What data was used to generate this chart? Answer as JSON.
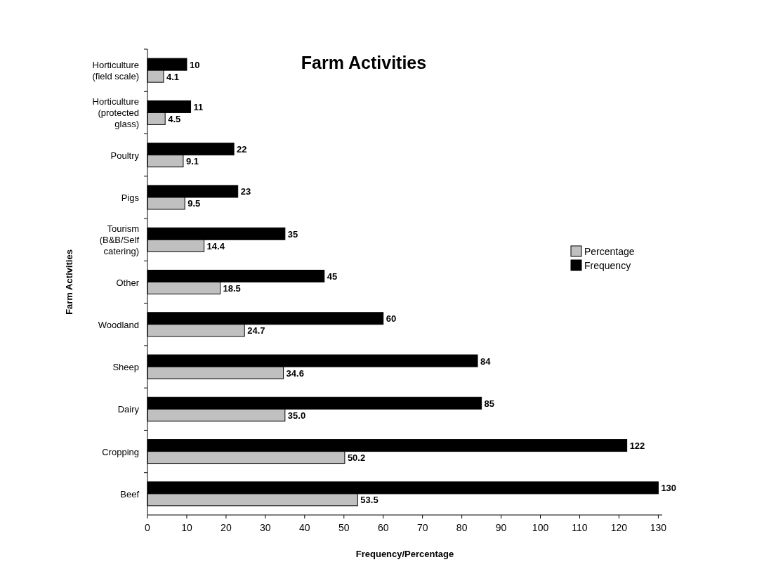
{
  "chart_data": {
    "type": "bar",
    "orientation": "horizontal",
    "title": "Farm Activities",
    "xlabel": "Frequency/Percentage",
    "ylabel": "Farm Activities",
    "categories": [
      "Horticulture (field scale)",
      "Horticulture (protected glass)",
      "Poultry",
      "Pigs",
      "Tourism (B&B/Self catering)",
      "Other",
      "Woodland",
      "Sheep",
      "Dairy",
      "Cropping",
      "Beef"
    ],
    "series": [
      {
        "name": "Percentage",
        "color": "#c0c0c0",
        "values": [
          4.1,
          4.5,
          9.1,
          9.5,
          14.4,
          18.5,
          24.7,
          34.6,
          35.0,
          50.2,
          53.5
        ],
        "value_labels": [
          "4.1",
          "4.5",
          "9.1",
          "9.5",
          "14.4",
          "18.5",
          "24.7",
          "34.6",
          "35.0",
          "50.2",
          "53.5"
        ]
      },
      {
        "name": "Frequency",
        "color": "#000000",
        "values": [
          10,
          11,
          22,
          23,
          35,
          45,
          60,
          84,
          85,
          122,
          130
        ],
        "value_labels": [
          "10",
          "11",
          "22",
          "23",
          "35",
          "45",
          "60",
          "84",
          "85",
          "122",
          "130"
        ]
      }
    ],
    "xlim": [
      0,
      131
    ],
    "xticks": [
      0,
      10,
      20,
      30,
      40,
      50,
      60,
      70,
      80,
      90,
      100,
      110,
      120,
      130
    ],
    "grid": false,
    "legend": "right"
  }
}
